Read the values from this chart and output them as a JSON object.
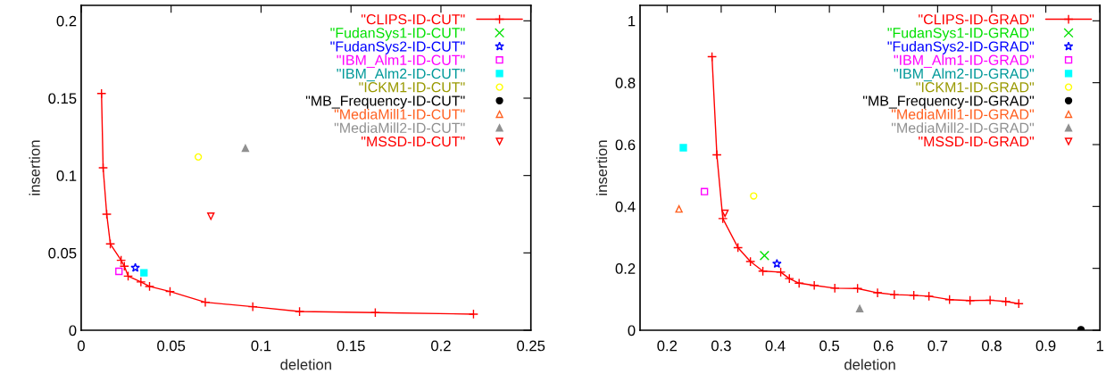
{
  "chart_data": [
    {
      "type": "scatter",
      "xlabel": "deletion",
      "ylabel": "insertion",
      "xlim": [
        0,
        0.25
      ],
      "ylim": [
        0,
        0.21
      ],
      "xticks": [
        0,
        0.05,
        0.1,
        0.15,
        0.2,
        0.25
      ],
      "yticks": [
        0,
        0.05,
        0.1,
        0.15,
        0.2
      ],
      "grid": false,
      "legend": "top right",
      "series": [
        {
          "name": "\"CLIPS-ID-CUT\"",
          "type": "line",
          "color": "#ff0000",
          "marker": "cross",
          "x": [
            0.0113,
            0.0122,
            0.0142,
            0.0162,
            0.0222,
            0.024,
            0.0261,
            0.0332,
            0.038,
            0.0494,
            0.069,
            0.0954,
            0.1214,
            0.1635,
            0.2181
          ],
          "values": [
            0.153,
            0.105,
            0.075,
            0.0558,
            0.0452,
            0.0414,
            0.035,
            0.0312,
            0.0283,
            0.025,
            0.0181,
            0.0152,
            0.0121,
            0.0114,
            0.0104
          ]
        },
        {
          "name": "\"FudanSys1-ID-CUT\"",
          "color": "#00e000",
          "marker": "x"
        },
        {
          "name": "\"FudanSys2-ID-CUT\"",
          "color": "#0000ff",
          "marker": "star",
          "x": [
            0.0301
          ],
          "values": [
            0.0404
          ]
        },
        {
          "name": "\"IBM_Alm1-ID-CUT\"",
          "color": "#ff00ff",
          "marker": "square",
          "x": [
            0.021
          ],
          "values": [
            0.0381
          ]
        },
        {
          "name": "\"IBM_Alm2-ID-CUT\"",
          "color": "#00ffff",
          "marker": "square-filled",
          "x": [
            0.0349
          ],
          "values": [
            0.0371
          ]
        },
        {
          "name": "\"ICKM1-ID-CUT\"",
          "color": "#ffff00",
          "marker": "circle",
          "x": [
            0.0651
          ],
          "values": [
            0.112
          ]
        },
        {
          "name": "\"MB_Frequency-ID-CUT\"",
          "color": "#000000",
          "marker": "circle-filled"
        },
        {
          "name": "\"MediaMill1-ID-CUT\"",
          "color": "#ff6020",
          "marker": "triangle"
        },
        {
          "name": "\"MediaMill2-ID-CUT\"",
          "color": "#909090",
          "marker": "triangle-filled",
          "x": [
            0.0913
          ],
          "values": [
            0.1177
          ]
        },
        {
          "name": "\"MSSD-ID-CUT\"",
          "color": "#ff0000",
          "marker": "triangle-down",
          "x": [
            0.0721
          ],
          "values": [
            0.0737
          ]
        }
      ]
    },
    {
      "type": "scatter",
      "xlabel": "deletion",
      "ylabel": "insertion",
      "xlim": [
        0.15,
        1.0
      ],
      "ylim": [
        0,
        1.05
      ],
      "xticks": [
        0.2,
        0.3,
        0.4,
        0.5,
        0.6,
        0.7,
        0.8,
        0.9,
        1
      ],
      "yticks": [
        0,
        0.2,
        0.4,
        0.6,
        0.8,
        1
      ],
      "grid": false,
      "legend": "top right",
      "series": [
        {
          "name": "\"CLIPS-ID-GRAD\"",
          "type": "line",
          "color": "#ff0000",
          "marker": "cross",
          "x": [
            0.283,
            0.292,
            0.303,
            0.331,
            0.354,
            0.377,
            0.41,
            0.426,
            0.444,
            0.472,
            0.51,
            0.552,
            0.589,
            0.62,
            0.656,
            0.684,
            0.722,
            0.76,
            0.797,
            0.826,
            0.85
          ],
          "values": [
            0.884,
            0.567,
            0.361,
            0.267,
            0.222,
            0.191,
            0.188,
            0.167,
            0.152,
            0.145,
            0.136,
            0.135,
            0.121,
            0.115,
            0.113,
            0.11,
            0.099,
            0.096,
            0.097,
            0.093,
            0.086
          ]
        },
        {
          "name": "\"FudanSys1-ID-GRAD\"",
          "color": "#00e000",
          "marker": "x",
          "x": [
            0.38
          ],
          "values": [
            0.241
          ]
        },
        {
          "name": "\"FudanSys2-ID-GRAD\"",
          "color": "#0000ff",
          "marker": "star",
          "x": [
            0.403
          ],
          "values": [
            0.215
          ]
        },
        {
          "name": "\"IBM_Alm1-ID-GRAD\"",
          "color": "#ff00ff",
          "marker": "square",
          "x": [
            0.269
          ],
          "values": [
            0.448
          ]
        },
        {
          "name": "\"IBM_Alm2-ID-GRAD\"",
          "color": "#00ffff",
          "marker": "square-filled",
          "x": [
            0.23
          ],
          "values": [
            0.59
          ]
        },
        {
          "name": "\"ICKM1-ID-GRAD\"",
          "color": "#ffff00",
          "marker": "circle",
          "x": [
            0.36
          ],
          "values": [
            0.434
          ]
        },
        {
          "name": "\"MB_Frequency-ID-GRAD\"",
          "color": "#000000",
          "marker": "circle-filled",
          "x": [
            0.965
          ],
          "values": [
            0.002
          ]
        },
        {
          "name": "\"MediaMill1-ID-GRAD\"",
          "color": "#ff6020",
          "marker": "triangle",
          "x": [
            0.222
          ],
          "values": [
            0.392
          ]
        },
        {
          "name": "\"MediaMill2-ID-GRAD\"",
          "color": "#909090",
          "marker": "triangle-filled",
          "x": [
            0.556
          ],
          "values": [
            0.07
          ]
        },
        {
          "name": "\"MSSD-ID-GRAD\"",
          "color": "#ff0000",
          "marker": "triangle-down",
          "x": [
            0.307
          ],
          "values": [
            0.378
          ]
        }
      ]
    }
  ]
}
